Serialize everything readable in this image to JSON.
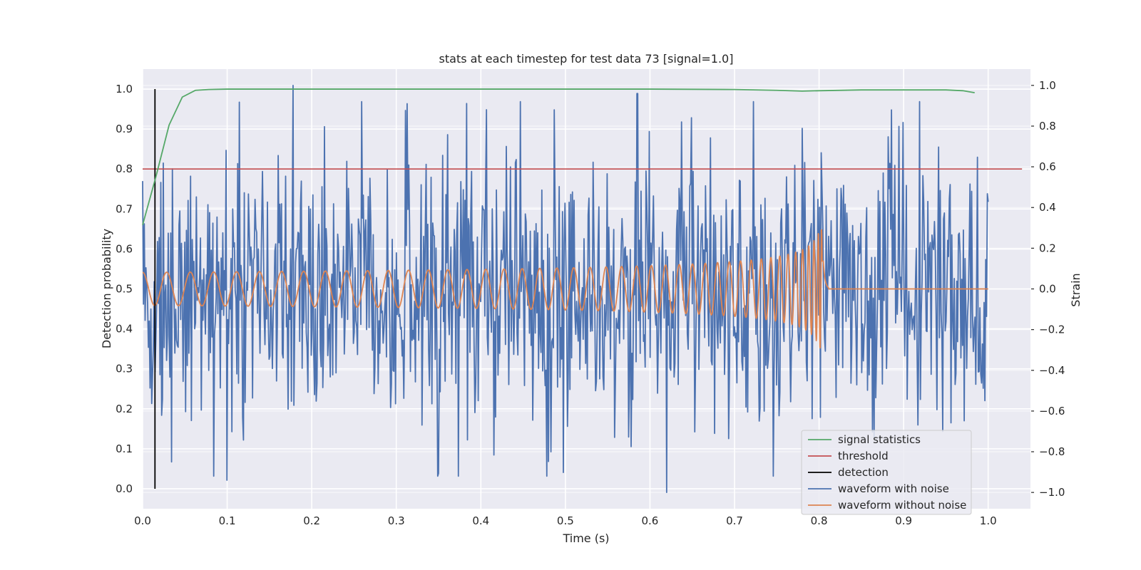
{
  "chart_data": {
    "type": "line",
    "title": "stats at each timestep for test data 73 [signal=1.0]",
    "xlabel": "Time (s)",
    "ylabel_left": "Detection probability",
    "ylabel_right": "Strain",
    "xlim": [
      0.0,
      1.05
    ],
    "ylim_left": [
      -0.05,
      1.05
    ],
    "ylim_right": [
      -1.08,
      1.08
    ],
    "grid": true,
    "legend_position": "lower-right",
    "x_ticks": [
      "0.0",
      "0.1",
      "0.2",
      "0.3",
      "0.4",
      "0.5",
      "0.6",
      "0.7",
      "0.8",
      "0.9",
      "1.0"
    ],
    "y_ticks_left": [
      "0.0",
      "0.1",
      "0.2",
      "0.3",
      "0.4",
      "0.5",
      "0.6",
      "0.7",
      "0.8",
      "0.9",
      "1.0"
    ],
    "y_ticks_right": [
      "−1.0",
      "−0.8",
      "−0.6",
      "−0.4",
      "−0.2",
      "0.0",
      "0.2",
      "0.4",
      "0.6",
      "0.8",
      "1.0"
    ],
    "series": [
      {
        "name": "signal statistics",
        "color": "#55a868",
        "axis": "left",
        "x": [
          0.0,
          0.0156,
          0.0313,
          0.0469,
          0.0625,
          0.0781,
          0.1,
          0.2,
          0.3,
          0.4,
          0.5,
          0.6,
          0.7,
          0.75,
          0.78,
          0.8,
          0.85,
          0.9,
          0.95,
          0.97,
          0.984
        ],
        "y": [
          0.66,
          0.78,
          0.91,
          0.98,
          0.997,
          0.999,
          1.0,
          1.0,
          1.0,
          1.0,
          1.0,
          1.0,
          0.999,
          0.997,
          0.995,
          0.996,
          0.998,
          0.998,
          0.998,
          0.996,
          0.991
        ]
      },
      {
        "name": "threshold",
        "color": "#c44e52",
        "axis": "left",
        "x": [
          0.0,
          1.04
        ],
        "y": [
          0.8,
          0.8
        ]
      },
      {
        "name": "detection",
        "color": "#000000",
        "axis": "left",
        "x": [
          0.0146,
          0.0146
        ],
        "y": [
          0.0,
          1.0
        ]
      },
      {
        "name": "waveform with noise",
        "color": "#4c72b0",
        "axis": "right",
        "x_range": [
          0.0,
          1.0
        ],
        "points": 1024,
        "peaks": [
          {
            "x": 0.1,
            "y": -0.94
          },
          {
            "x": 0.178,
            "y": 1.0
          },
          {
            "x": 0.62,
            "y": -1.0
          },
          {
            "x": 0.585,
            "y": 0.96
          },
          {
            "x": 0.946,
            "y": -0.7
          }
        ]
      },
      {
        "name": "waveform without noise",
        "color": "#dd8452",
        "axis": "right",
        "x_range": [
          0.0,
          1.0
        ],
        "merger_time": 0.805,
        "max_amplitude": 0.29
      }
    ]
  }
}
